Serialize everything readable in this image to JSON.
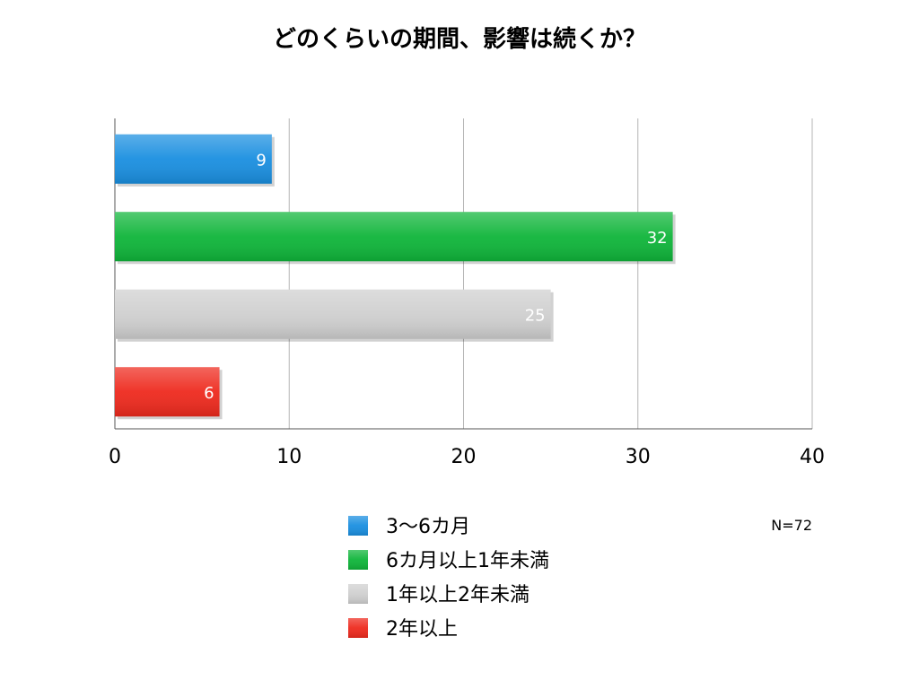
{
  "chart_data": {
    "type": "bar",
    "orientation": "horizontal",
    "title": "どのくらいの期間、影響は続くか？",
    "categories": [
      "3〜6カ月",
      "6カ月以上1年未満",
      "1年以上2年未満",
      "2年以上"
    ],
    "values": [
      9,
      32,
      25,
      6
    ],
    "colors": [
      "#1a8fe0",
      "#0fb53a",
      "#cfcfcf",
      "#ee2a1e"
    ],
    "value_labels": [
      "9",
      "32",
      "25",
      "6"
    ],
    "xlim": [
      0,
      40
    ],
    "xticks": [
      0,
      10,
      20,
      30,
      40
    ],
    "xtick_labels": [
      "0",
      "10",
      "20",
      "30",
      "40"
    ],
    "grid": true,
    "legend_position": "bottom",
    "note": "N=72"
  }
}
